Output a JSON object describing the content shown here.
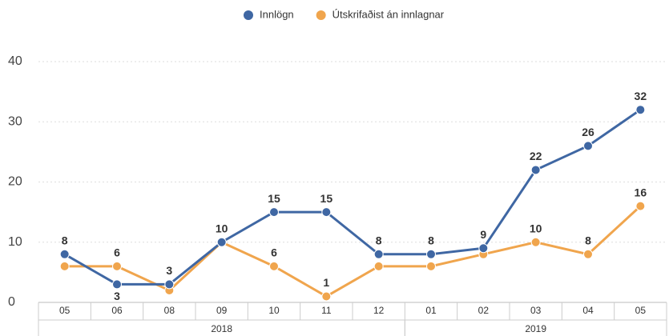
{
  "chart_data": {
    "type": "line",
    "categories": [
      "05",
      "06",
      "08",
      "09",
      "10",
      "11",
      "12",
      "01",
      "02",
      "03",
      "04",
      "05"
    ],
    "groups": [
      {
        "label": "2018",
        "count": 7
      },
      {
        "label": "2019",
        "count": 5
      }
    ],
    "series": [
      {
        "name": "Innlögn",
        "color": "#3f67a3",
        "values": [
          8,
          3,
          3,
          10,
          15,
          15,
          8,
          8,
          9,
          22,
          26,
          32
        ],
        "value_labels": [
          8,
          3,
          3,
          10,
          15,
          15,
          8,
          8,
          9,
          22,
          26,
          32
        ]
      },
      {
        "name": "Útskrifaðist án innlagnar",
        "color": "#f0a54d",
        "values": [
          6,
          6,
          2,
          10,
          6,
          1,
          6,
          6,
          8,
          10,
          8,
          16
        ],
        "value_labels": [
          null,
          6,
          null,
          null,
          6,
          1,
          null,
          null,
          null,
          10,
          8,
          16
        ]
      }
    ],
    "ylim": [
      0,
      40
    ],
    "yticks": [
      0,
      10,
      20,
      30,
      40
    ],
    "grid": true,
    "legend": "top"
  }
}
